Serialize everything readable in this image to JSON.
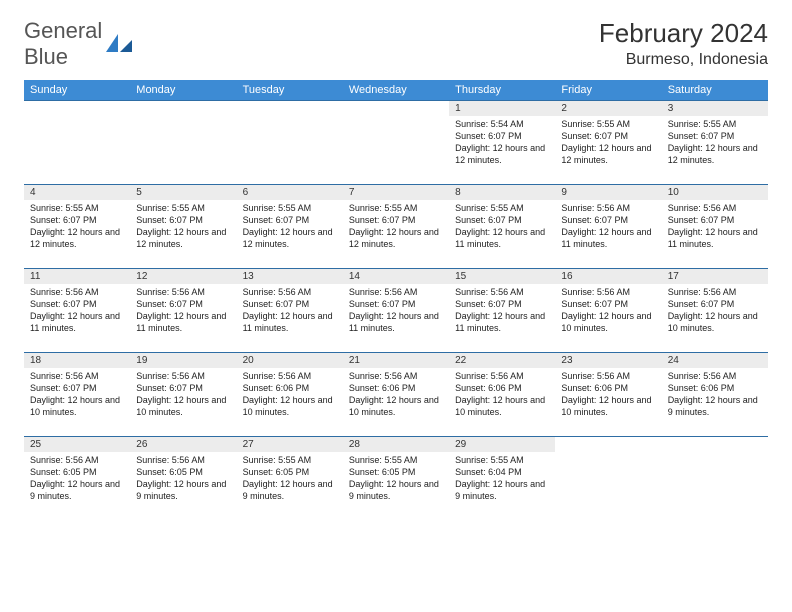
{
  "logo": {
    "word1": "General",
    "word2": "Blue"
  },
  "header": {
    "title": "February 2024",
    "location": "Burmeso, Indonesia"
  },
  "style": {
    "header_bg": "#3d8bd4",
    "header_text": "#ffffff",
    "daynum_bg": "#ececec",
    "border_color": "#2e6da4",
    "font_base": 9,
    "font_title": 26
  },
  "dayNames": [
    "Sunday",
    "Monday",
    "Tuesday",
    "Wednesday",
    "Thursday",
    "Friday",
    "Saturday"
  ],
  "weeks": [
    [
      null,
      null,
      null,
      null,
      {
        "n": "1",
        "sr": "5:54 AM",
        "ss": "6:07 PM",
        "dl": "12 hours and 12 minutes."
      },
      {
        "n": "2",
        "sr": "5:55 AM",
        "ss": "6:07 PM",
        "dl": "12 hours and 12 minutes."
      },
      {
        "n": "3",
        "sr": "5:55 AM",
        "ss": "6:07 PM",
        "dl": "12 hours and 12 minutes."
      }
    ],
    [
      {
        "n": "4",
        "sr": "5:55 AM",
        "ss": "6:07 PM",
        "dl": "12 hours and 12 minutes."
      },
      {
        "n": "5",
        "sr": "5:55 AM",
        "ss": "6:07 PM",
        "dl": "12 hours and 12 minutes."
      },
      {
        "n": "6",
        "sr": "5:55 AM",
        "ss": "6:07 PM",
        "dl": "12 hours and 12 minutes."
      },
      {
        "n": "7",
        "sr": "5:55 AM",
        "ss": "6:07 PM",
        "dl": "12 hours and 12 minutes."
      },
      {
        "n": "8",
        "sr": "5:55 AM",
        "ss": "6:07 PM",
        "dl": "12 hours and 11 minutes."
      },
      {
        "n": "9",
        "sr": "5:56 AM",
        "ss": "6:07 PM",
        "dl": "12 hours and 11 minutes."
      },
      {
        "n": "10",
        "sr": "5:56 AM",
        "ss": "6:07 PM",
        "dl": "12 hours and 11 minutes."
      }
    ],
    [
      {
        "n": "11",
        "sr": "5:56 AM",
        "ss": "6:07 PM",
        "dl": "12 hours and 11 minutes."
      },
      {
        "n": "12",
        "sr": "5:56 AM",
        "ss": "6:07 PM",
        "dl": "12 hours and 11 minutes."
      },
      {
        "n": "13",
        "sr": "5:56 AM",
        "ss": "6:07 PM",
        "dl": "12 hours and 11 minutes."
      },
      {
        "n": "14",
        "sr": "5:56 AM",
        "ss": "6:07 PM",
        "dl": "12 hours and 11 minutes."
      },
      {
        "n": "15",
        "sr": "5:56 AM",
        "ss": "6:07 PM",
        "dl": "12 hours and 11 minutes."
      },
      {
        "n": "16",
        "sr": "5:56 AM",
        "ss": "6:07 PM",
        "dl": "12 hours and 10 minutes."
      },
      {
        "n": "17",
        "sr": "5:56 AM",
        "ss": "6:07 PM",
        "dl": "12 hours and 10 minutes."
      }
    ],
    [
      {
        "n": "18",
        "sr": "5:56 AM",
        "ss": "6:07 PM",
        "dl": "12 hours and 10 minutes."
      },
      {
        "n": "19",
        "sr": "5:56 AM",
        "ss": "6:07 PM",
        "dl": "12 hours and 10 minutes."
      },
      {
        "n": "20",
        "sr": "5:56 AM",
        "ss": "6:06 PM",
        "dl": "12 hours and 10 minutes."
      },
      {
        "n": "21",
        "sr": "5:56 AM",
        "ss": "6:06 PM",
        "dl": "12 hours and 10 minutes."
      },
      {
        "n": "22",
        "sr": "5:56 AM",
        "ss": "6:06 PM",
        "dl": "12 hours and 10 minutes."
      },
      {
        "n": "23",
        "sr": "5:56 AM",
        "ss": "6:06 PM",
        "dl": "12 hours and 10 minutes."
      },
      {
        "n": "24",
        "sr": "5:56 AM",
        "ss": "6:06 PM",
        "dl": "12 hours and 9 minutes."
      }
    ],
    [
      {
        "n": "25",
        "sr": "5:56 AM",
        "ss": "6:05 PM",
        "dl": "12 hours and 9 minutes."
      },
      {
        "n": "26",
        "sr": "5:56 AM",
        "ss": "6:05 PM",
        "dl": "12 hours and 9 minutes."
      },
      {
        "n": "27",
        "sr": "5:55 AM",
        "ss": "6:05 PM",
        "dl": "12 hours and 9 minutes."
      },
      {
        "n": "28",
        "sr": "5:55 AM",
        "ss": "6:05 PM",
        "dl": "12 hours and 9 minutes."
      },
      {
        "n": "29",
        "sr": "5:55 AM",
        "ss": "6:04 PM",
        "dl": "12 hours and 9 minutes."
      },
      null,
      null
    ]
  ],
  "labels": {
    "sunrise": "Sunrise:",
    "sunset": "Sunset:",
    "daylight": "Daylight:"
  }
}
